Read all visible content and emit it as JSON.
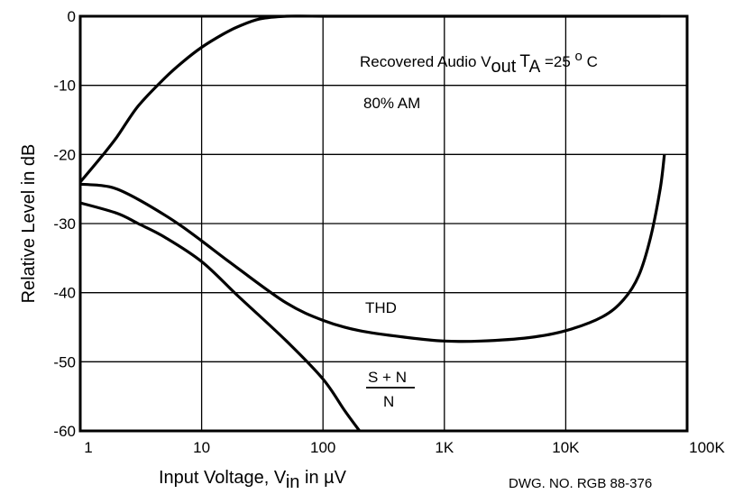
{
  "chart_data": {
    "type": "line",
    "x_scale": "log",
    "xlim": [
      1,
      100000
    ],
    "ylim": [
      -60,
      0
    ],
    "grid": true,
    "xlabel": "Input Voltage, V",
    "xlabel_sub": "in",
    "xlabel_unit": " in µV",
    "ylabel": "Relative Level in dB",
    "x_tick_labels": [
      "1",
      "10",
      "100",
      "1K",
      "10K",
      "100K"
    ],
    "x_tick_values": [
      1,
      10,
      100,
      1000,
      10000,
      100000
    ],
    "y_tick_labels": [
      "0",
      "-10",
      "-20",
      "-30",
      "-40",
      "-50",
      "-60"
    ],
    "y_tick_values": [
      0,
      -10,
      -20,
      -30,
      -40,
      -50,
      -60
    ],
    "series": [
      {
        "name": "",
        "x": [
          1,
          1.5,
          2,
          3,
          5,
          7,
          10,
          15,
          20,
          30,
          50,
          100,
          1000,
          60000
        ],
        "y": [
          -24,
          -20.3,
          -17.5,
          -13,
          -8.9,
          -6.6,
          -4.5,
          -2.6,
          -1.5,
          -0.4,
          0,
          0,
          0,
          0
        ]
      },
      {
        "name": "",
        "x": [
          1,
          1.5,
          2,
          3,
          5,
          7,
          10,
          20,
          50,
          100,
          200,
          500,
          1000,
          2000,
          5000,
          10000,
          20000,
          30000,
          40000,
          50000,
          60000,
          65000
        ],
        "y": [
          -24.3,
          -24.5,
          -25,
          -26.5,
          -28.8,
          -30.5,
          -32.5,
          -36.5,
          -41.5,
          -44,
          -45.5,
          -46.5,
          -47,
          -47,
          -46.5,
          -45.5,
          -43.5,
          -41,
          -37.5,
          -32,
          -25,
          -20
        ]
      },
      {
        "name": "",
        "x": [
          1,
          2,
          3,
          5,
          10,
          20,
          50,
          100,
          150,
          200
        ],
        "y": [
          -27,
          -28.5,
          -30,
          -32,
          -35.5,
          -40.5,
          -47,
          -52.5,
          -57,
          -60
        ]
      }
    ],
    "annotations": {
      "recovered_audio": "Recovered Audio V",
      "recovered_sub": "out",
      "ta": "T",
      "ta_sub": "A",
      "ta_rest": " =25 ",
      "degree": "o",
      "celsius": " C",
      "am": "80% AM",
      "thd": "THD",
      "snr_num": "S + N",
      "snr_den": "N"
    },
    "drawing_number": "DWG. NO. RGB 88-376"
  }
}
